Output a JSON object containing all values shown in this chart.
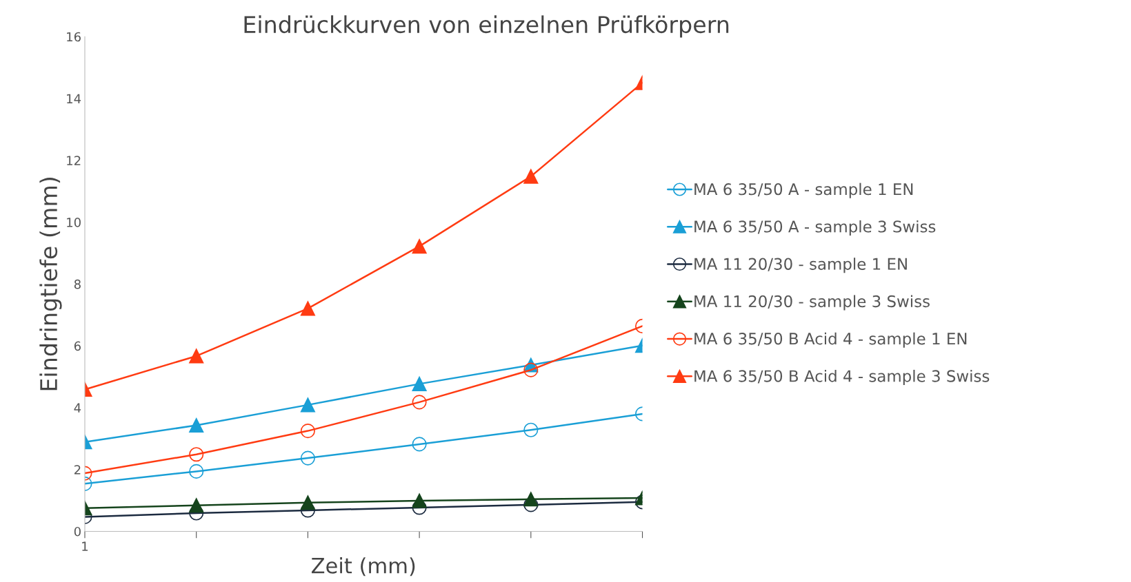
{
  "chart_data": {
    "type": "line",
    "title": "Eindrückkurven von einzelnen Prüfkörpern",
    "xlabel": "Zeit (mm)",
    "ylabel": "Eindringtiefe (mm)",
    "categories": [
      "1",
      null,
      null,
      null,
      null,
      null
    ],
    "ylim": [
      0,
      16
    ],
    "yticks": [
      0,
      2,
      4,
      6,
      8,
      10,
      12,
      14,
      16
    ],
    "grid": false,
    "legend": "right",
    "series": [
      {
        "name": "MA 6 35/50 A - sample 1 EN",
        "color": "#1a9fd6",
        "marker": "circle",
        "values": [
          1.54,
          1.94,
          2.37,
          2.82,
          3.28,
          3.8
        ]
      },
      {
        "name": "MA 6 35/50 A - sample 3 Swiss",
        "color": "#1a9fd6",
        "marker": "triangle",
        "values": [
          2.89,
          3.43,
          4.09,
          4.77,
          5.38,
          6.01
        ]
      },
      {
        "name": "MA 11 20/30 - sample 1 EN",
        "color": "#1c2b40",
        "marker": "circle",
        "values": [
          0.47,
          0.59,
          0.68,
          0.77,
          0.86,
          0.95
        ]
      },
      {
        "name": "MA 11 20/30 - sample 3 Swiss",
        "color": "#15441c",
        "marker": "triangle",
        "values": [
          0.75,
          0.84,
          0.93,
          0.99,
          1.04,
          1.08
        ]
      },
      {
        "name": "MA 6 35/50 B Acid 4 - sample 1 EN",
        "color": "#ff3b12",
        "marker": "circle",
        "values": [
          1.88,
          2.49,
          3.25,
          4.18,
          5.22,
          6.64
        ]
      },
      {
        "name": "MA 6 35/50 B Acid 4 - sample 3 Swiss",
        "color": "#ff3b12",
        "marker": "triangle",
        "values": [
          4.59,
          5.67,
          7.21,
          9.22,
          11.48,
          14.51
        ]
      }
    ]
  }
}
